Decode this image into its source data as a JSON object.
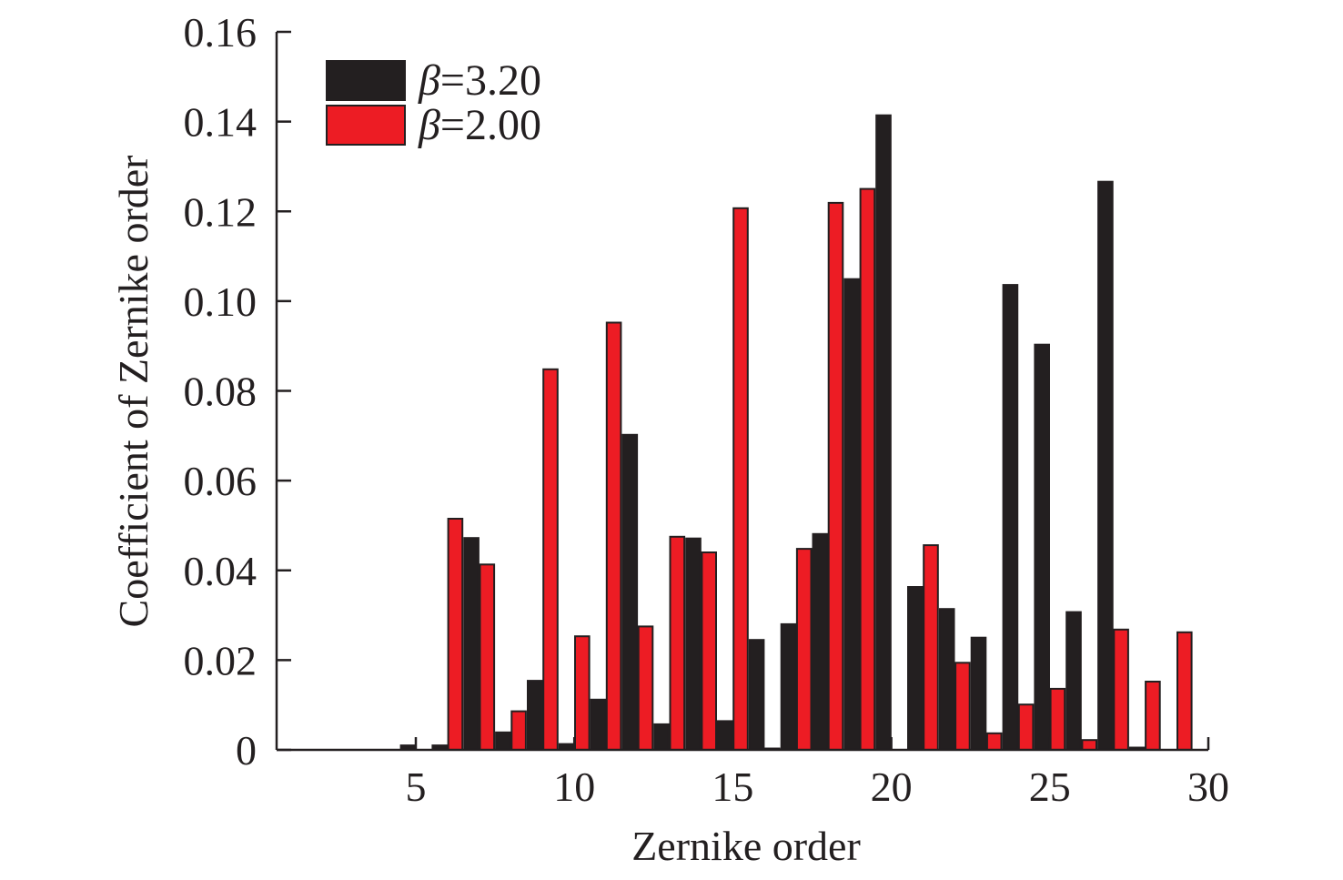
{
  "chart_data": {
    "type": "bar",
    "title": "",
    "xlabel": "Zernike order",
    "ylabel": "Coefficient of Zernike order",
    "xlim": [
      0,
      30
    ],
    "ylim": [
      0,
      0.16
    ],
    "xticks": [
      5,
      10,
      15,
      20,
      25,
      30
    ],
    "xtick_labels": [
      "5",
      "10",
      "15",
      "20",
      "25",
      "30"
    ],
    "yticks": [
      0,
      0.02,
      0.04,
      0.06,
      0.08,
      0.1,
      0.12,
      0.14,
      0.16
    ],
    "ytick_labels": [
      "0",
      "0.02",
      "0.04",
      "0.06",
      "0.08",
      "0.10",
      "0.12",
      "0.14",
      "0.16"
    ],
    "grid": false,
    "legend_position": "top-left",
    "categories": [
      1,
      2,
      3,
      4,
      5,
      6,
      7,
      8,
      9,
      10,
      11,
      12,
      13,
      14,
      15,
      16,
      17,
      18,
      19,
      20,
      21,
      22,
      23,
      24,
      25,
      26,
      27,
      28,
      29
    ],
    "series": [
      {
        "name": "β=3.20",
        "legend_symbol": "β",
        "legend_value": "=3.20",
        "color": "#231f20",
        "values": [
          0,
          0,
          0,
          0,
          0.001,
          0.001,
          0.0472,
          0.0039,
          0.0154,
          0.0013,
          0.0112,
          0.0702,
          0.0057,
          0.0471,
          0.0064,
          0.0245,
          0.028,
          0.0481,
          0.1049,
          0.1414,
          0.0363,
          0.0314,
          0.025,
          0.1036,
          0.0903,
          0.0307,
          0.1266,
          0.0005,
          0
        ]
      },
      {
        "name": "β=2.00",
        "legend_symbol": "β",
        "legend_value": "=2.00",
        "color": "#ed1c24",
        "values": [
          0,
          0,
          0,
          0,
          0,
          0.0515,
          0.0413,
          0.0086,
          0.0848,
          0.0253,
          0.0952,
          0.0275,
          0.0475,
          0.044,
          0.1207,
          0.0003,
          0.0448,
          0.1219,
          0.125,
          0,
          0.0456,
          0.0194,
          0.0037,
          0.0101,
          0.0136,
          0.0022,
          0.0268,
          0.0152,
          0.0262
        ]
      }
    ]
  }
}
